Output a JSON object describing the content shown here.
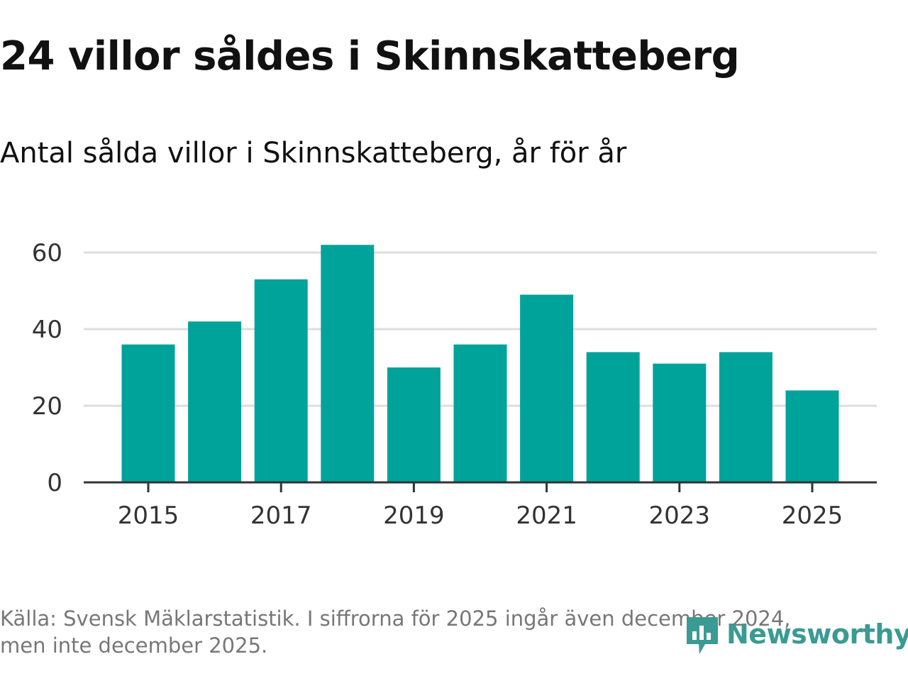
{
  "title": "24 villor såldes i Skinnskatteberg",
  "subtitle": "Antal sålda villor i Skinnskatteberg, år för år",
  "footnote": {
    "line1": "Källa: Svensk Mäklarstatistik. I siffrorna för 2025 ingår även december 2024,",
    "line2": "men inte december 2025."
  },
  "brand": {
    "name": "Newsworthy",
    "icon": "newsworthy-logo-icon",
    "color": "#3a9b93"
  },
  "colors": {
    "bar": "#00a39a",
    "grid": "#dddddd",
    "axis": "#333333"
  },
  "chart_data": {
    "type": "bar",
    "title": "Antal sålda villor i Skinnskatteberg, år för år",
    "xlabel": "",
    "ylabel": "",
    "categories": [
      "2015",
      "2016",
      "2017",
      "2018",
      "2019",
      "2020",
      "2021",
      "2022",
      "2023",
      "2024",
      "2025"
    ],
    "values": [
      36,
      42,
      53,
      62,
      30,
      36,
      49,
      34,
      31,
      34,
      24
    ],
    "ylim": [
      0,
      62
    ],
    "yticks": [
      0,
      20,
      40,
      60
    ],
    "xtick_labels": [
      "2015",
      "2017",
      "2019",
      "2021",
      "2023",
      "2025"
    ],
    "grid": true,
    "legend": "none"
  }
}
